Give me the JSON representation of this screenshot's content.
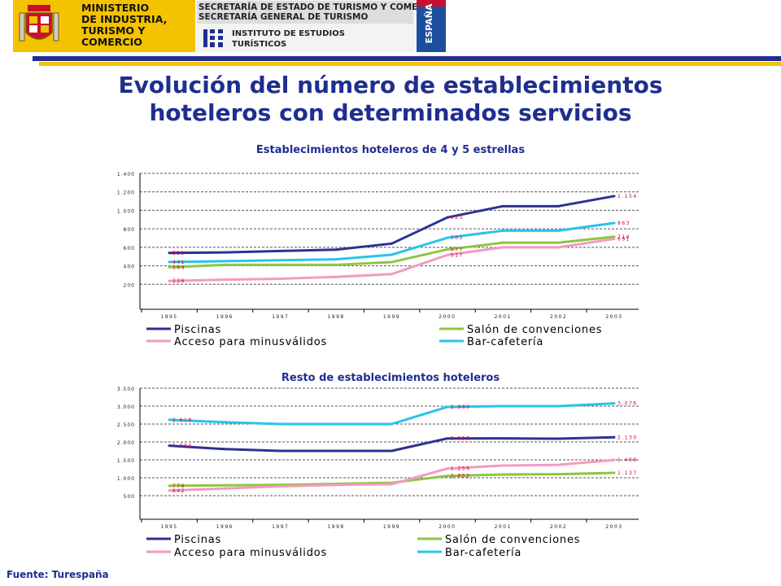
{
  "header": {
    "ministry_lines": "MINISTERIO\nDE INDUSTRIA,\nTURISMO Y\nCOMERCIO",
    "secretaria_1": "SECRETARÍA DE ESTADO DE TURISMO Y COMERCIO",
    "secretaria_2": "SECRETARÍA GENERAL DE TURISMO",
    "instituto_1": "INSTITUTO DE ESTUDIOS",
    "instituto_2": "TURÍSTICOS",
    "espana": "ESPAÑA"
  },
  "page_title_1": "Evolución del número de establecimientos",
  "page_title_2": "hoteleros con  determinados servicios",
  "footer": "Fuente: Turespaña",
  "colors": {
    "navy": "#1f2e8f",
    "yellow": "#f3c200",
    "piscinas": "#2e3192",
    "salon": "#8dc63f",
    "acceso": "#f49ac1",
    "bar": "#27c4ec",
    "label": "#cc0033"
  },
  "chart_data": [
    {
      "type": "line",
      "title": "Establecimientos hoteleros de 4 y 5 estrellas",
      "x": [
        "1995",
        "1996",
        "1997",
        "1998",
        "1999",
        "2000",
        "2001",
        "2002",
        "2003"
      ],
      "ylim": [
        0,
        1400
      ],
      "yticks": [
        "",
        "200",
        "400",
        "600",
        "800",
        "1.000",
        "1.200",
        "1.400"
      ],
      "grid": true,
      "legend_position": "bottom",
      "series": [
        {
          "name": "Piscinas",
          "color": "#2e3192",
          "values": [
            539,
            545,
            560,
            575,
            640,
            923,
            1045,
            1045,
            1154
          ],
          "labels": [
            {
              "i": 0,
              "text": "539"
            },
            {
              "i": 5,
              "text": "923"
            },
            {
              "i": 8,
              "text": "1.154"
            }
          ]
        },
        {
          "name": "Salón de convenciones",
          "color": "#8dc63f",
          "values": [
            384,
            410,
            410,
            410,
            440,
            577,
            650,
            650,
            714
          ],
          "labels": [
            {
              "i": 0,
              "text": "384"
            },
            {
              "i": 5,
              "text": "577"
            },
            {
              "i": 8,
              "text": "714"
            }
          ]
        },
        {
          "name": "Acceso para minusválidos",
          "color": "#f49ac1",
          "values": [
            236,
            250,
            260,
            280,
            310,
            517,
            600,
            600,
            691
          ],
          "labels": [
            {
              "i": 0,
              "text": "236"
            },
            {
              "i": 5,
              "text": "517"
            },
            {
              "i": 8,
              "text": "691"
            }
          ]
        },
        {
          "name": "Bar-cafetería",
          "color": "#27c4ec",
          "values": [
            441,
            450,
            460,
            470,
            520,
            703,
            780,
            780,
            863
          ],
          "labels": [
            {
              "i": 0,
              "text": "441"
            },
            {
              "i": 5,
              "text": "703"
            },
            {
              "i": 8,
              "text": "863"
            }
          ]
        }
      ]
    },
    {
      "type": "line",
      "title": "Resto de establecimientos hoteleros",
      "x": [
        "1995",
        "1996",
        "1997",
        "1998",
        "1999",
        "2000",
        "2001",
        "2002",
        "2003"
      ],
      "ylim": [
        0,
        3500
      ],
      "yticks": [
        "",
        "500",
        "1.000",
        "1.500",
        "2.000",
        "2.500",
        "3.000",
        "3.500"
      ],
      "grid": true,
      "legend_position": "bottom",
      "series": [
        {
          "name": "Piscinas",
          "color": "#2e3192",
          "values": [
            1894,
            1800,
            1750,
            1750,
            1750,
            2098,
            2100,
            2090,
            2130
          ],
          "labels": [
            {
              "i": 0,
              "text": "1.894"
            },
            {
              "i": 5,
              "text": "2.098"
            },
            {
              "i": 8,
              "text": "2.130"
            }
          ]
        },
        {
          "name": "Salón de convenciones",
          "color": "#8dc63f",
          "values": [
            776,
            790,
            800,
            830,
            860,
            1052,
            1090,
            1100,
            1137
          ],
          "labels": [
            {
              "i": 0,
              "text": "776"
            },
            {
              "i": 5,
              "text": "1.052"
            },
            {
              "i": 8,
              "text": "1.137"
            }
          ]
        },
        {
          "name": "Acceso para minusválidos",
          "color": "#f49ac1",
          "values": [
            642,
            700,
            760,
            800,
            820,
            1256,
            1340,
            1360,
            1498
          ],
          "labels": [
            {
              "i": 0,
              "text": "642"
            },
            {
              "i": 5,
              "text": "1.256"
            },
            {
              "i": 8,
              "text": "1.498"
            }
          ]
        },
        {
          "name": "Bar-cafetería",
          "color": "#27c4ec",
          "values": [
            2618,
            2550,
            2500,
            2500,
            2500,
            2980,
            3000,
            3000,
            3076
          ],
          "labels": [
            {
              "i": 0,
              "text": "2.618"
            },
            {
              "i": 5,
              "text": "2.980"
            },
            {
              "i": 8,
              "text": "3.076"
            }
          ]
        }
      ]
    }
  ]
}
